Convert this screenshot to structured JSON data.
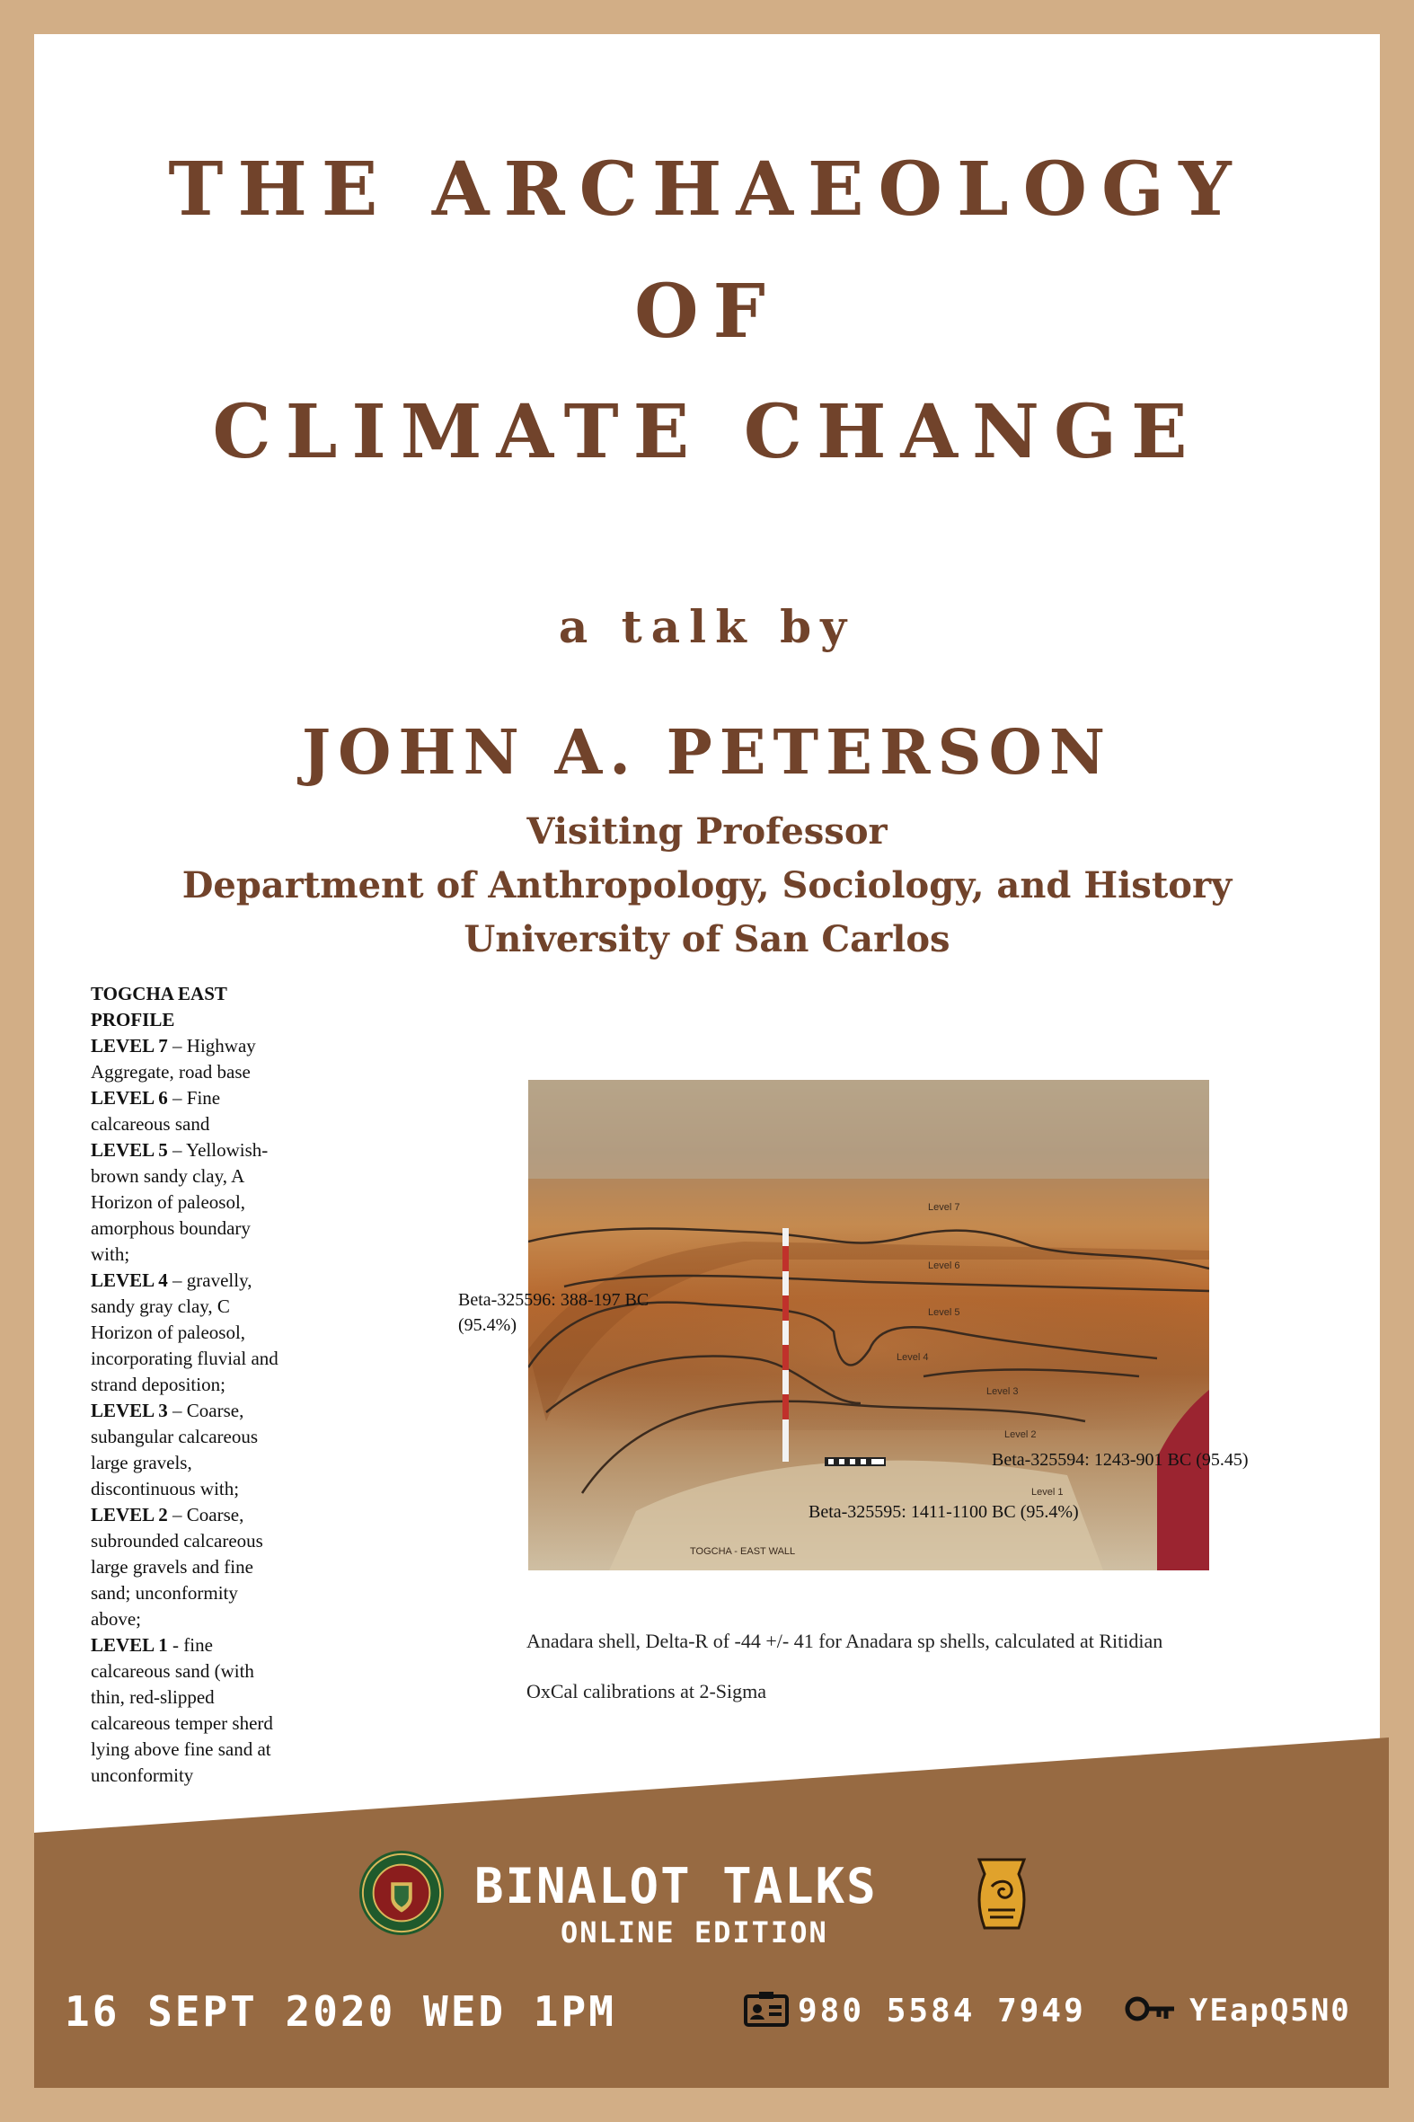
{
  "title_lines": [
    "THE ARCHAEOLOGY",
    "OF",
    "CLIMATE CHANGE"
  ],
  "talk_by": "a talk by",
  "speaker": {
    "name": "JOHN A. PETERSON",
    "position": "Visiting Professor",
    "department": "Department of Anthropology, Sociology, and History",
    "university": "University of San Carlos"
  },
  "profile": {
    "heading": [
      "TOGCHA EAST",
      "PROFILE"
    ],
    "rows": [
      {
        "bold": "LEVEL 7",
        "text": " – Highway"
      },
      {
        "bold": "",
        "text": "Aggregate, road base"
      },
      {
        "bold": "LEVEL 6",
        "text": " – Fine"
      },
      {
        "bold": "",
        "text": "calcareous sand"
      },
      {
        "bold": "LEVEL 5",
        "text": " – Yellowish-"
      },
      {
        "bold": "",
        "text": "brown sandy clay, A"
      },
      {
        "bold": "",
        "text": "Horizon of paleosol,"
      },
      {
        "bold": "",
        "text": "amorphous boundary"
      },
      {
        "bold": "",
        "text": "with;"
      },
      {
        "bold": "LEVEL 4",
        "text": " – gravelly,"
      },
      {
        "bold": "",
        "text": "sandy gray clay, C"
      },
      {
        "bold": "",
        "text": "Horizon of paleosol,"
      },
      {
        "bold": "",
        "text": "incorporating fluvial and"
      },
      {
        "bold": "",
        "text": "strand deposition;"
      },
      {
        "bold": "LEVEL 3",
        "text": " – Coarse,"
      },
      {
        "bold": "",
        "text": "subangular calcareous"
      },
      {
        "bold": "",
        "text": "large gravels,"
      },
      {
        "bold": "",
        "text": "discontinuous with;"
      },
      {
        "bold": "LEVEL 2",
        "text": " – Coarse,"
      },
      {
        "bold": "",
        "text": "subrounded calcareous"
      },
      {
        "bold": "",
        "text": "large gravels and fine"
      },
      {
        "bold": "",
        "text": "sand; unconformity"
      },
      {
        "bold": "",
        "text": "above;"
      },
      {
        "bold": "LEVEL 1",
        "text": " -  fine"
      },
      {
        "bold": "",
        "text": "calcareous sand (with"
      },
      {
        "bold": "",
        "text": "thin, red-slipped"
      },
      {
        "bold": "",
        "text": "calcareous temper sherd"
      },
      {
        "bold": "",
        "text": "lying above fine sand at"
      },
      {
        "bold": "",
        "text": "unconformity"
      }
    ]
  },
  "photo": {
    "dates": {
      "beta_596": "Beta-325596:  388-197 BC",
      "beta_596_pct": "(95.4%)",
      "beta_594": "Beta-325594:  1243-901 BC (95.45)",
      "beta_595": "Beta-325595:  1411-1100 BC (95.4%)"
    },
    "level_labels": [
      "Level 7",
      "Level 6",
      "Level 5",
      "Level 4",
      "Level 3",
      "Level 2",
      "Level 1"
    ],
    "caption_in_photo": "TOGCHA - EAST WALL"
  },
  "notes": {
    "shell": "Anadara shell, Delta-R of -44 +/- 41 for Anadara sp shells, calculated at Ritidian",
    "oxcal": "OxCal calibrations at 2-Sigma"
  },
  "footer": {
    "series": "BINALOT TALKS",
    "edition": "ONLINE EDITION",
    "date": "16 SEPT 2020 WED 1PM",
    "meeting_id": "980 5584 7949",
    "passcode": "YEapQ5N0",
    "colors": {
      "band": "#976a42",
      "frame": "#d2ae86",
      "text": "#71432b"
    }
  }
}
